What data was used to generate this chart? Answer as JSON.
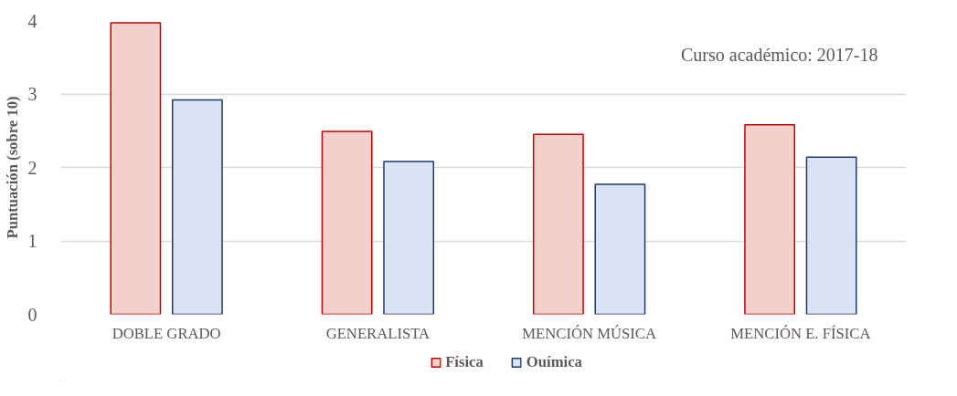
{
  "chart_data": {
    "type": "bar",
    "ylabel": "Puntuación (sobre 10)",
    "annotations": [
      "Curso académico: 2017-18"
    ],
    "categories": [
      "DOBLE GRADO",
      "GENERALISTA",
      "MENCIÓN MÚSICA",
      "MENCIÓN E. FÍSICA"
    ],
    "series": [
      {
        "name": "Física",
        "color": "#f2d0cc",
        "values": [
          3.97,
          2.49,
          2.45,
          2.58
        ]
      },
      {
        "name": "Ouímica",
        "color": "#dae3f3",
        "values": [
          2.92,
          2.08,
          1.77,
          2.14
        ]
      }
    ],
    "ylim": [
      0,
      4
    ],
    "yticks": [
      0,
      1,
      2,
      3,
      4
    ],
    "grid": "y",
    "legend": "bottom"
  }
}
